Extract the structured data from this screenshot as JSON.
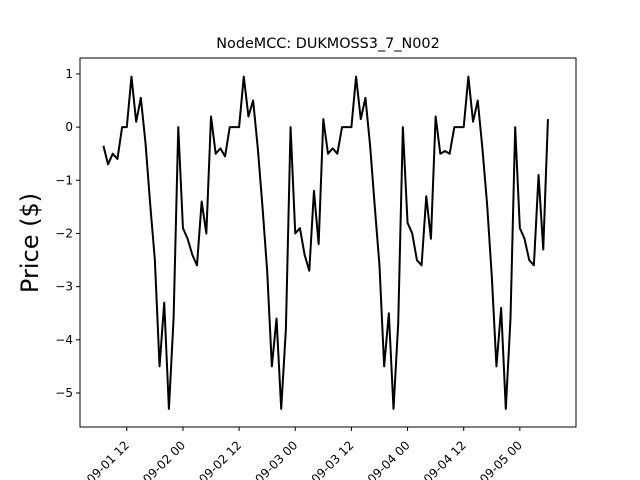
{
  "chart_data": {
    "type": "line",
    "title": "NodeMCC: DUKMOSS3_7_N002",
    "y_label": "Price ($)",
    "x": [
      "09-01 07",
      "09-01 08",
      "09-01 09",
      "09-01 10",
      "09-01 11",
      "09-01 12",
      "09-01 13",
      "09-01 14",
      "09-01 15",
      "09-01 16",
      "09-01 17",
      "09-01 18",
      "09-01 19",
      "09-01 20",
      "09-01 21",
      "09-01 22",
      "09-01 23",
      "09-02 00",
      "09-02 01",
      "09-02 02",
      "09-02 03",
      "09-02 04",
      "09-02 05",
      "09-02 06",
      "09-02 07",
      "09-02 08",
      "09-02 09",
      "09-02 10",
      "09-02 11",
      "09-02 12",
      "09-02 13",
      "09-02 14",
      "09-02 15",
      "09-02 16",
      "09-02 17",
      "09-02 18",
      "09-02 19",
      "09-02 20",
      "09-02 21",
      "09-02 22",
      "09-02 23",
      "09-03 00",
      "09-03 01",
      "09-03 02",
      "09-03 03",
      "09-03 04",
      "09-03 05",
      "09-03 06",
      "09-03 07",
      "09-03 08",
      "09-03 09",
      "09-03 10",
      "09-03 11",
      "09-03 12",
      "09-03 13",
      "09-03 14",
      "09-03 15",
      "09-03 16",
      "09-03 17",
      "09-03 18",
      "09-03 19",
      "09-03 20",
      "09-03 21",
      "09-03 22",
      "09-03 23",
      "09-04 00",
      "09-04 01",
      "09-04 02",
      "09-04 03",
      "09-04 04",
      "09-04 05",
      "09-04 06",
      "09-04 07",
      "09-04 08",
      "09-04 09",
      "09-04 10",
      "09-04 11",
      "09-04 12",
      "09-04 13",
      "09-04 14",
      "09-04 15",
      "09-04 16",
      "09-04 17",
      "09-04 18",
      "09-04 19",
      "09-04 20",
      "09-04 21",
      "09-04 22",
      "09-04 23",
      "09-05 00",
      "09-05 01",
      "09-05 02",
      "09-05 03",
      "09-05 04",
      "09-05 05",
      "09-05 06"
    ],
    "series": [
      {
        "name": "DUKMOSS3_7_N002",
        "color": "#000000",
        "values": [
          -0.35,
          -0.7,
          -0.5,
          -0.6,
          0,
          0,
          0.95,
          0.1,
          0.55,
          -0.3,
          -1.45,
          -2.5,
          -4.5,
          -3.3,
          -5.3,
          -3.6,
          0,
          -1.9,
          -2.1,
          -2.4,
          -2.6,
          -1.4,
          -2.0,
          0.2,
          -0.5,
          -0.4,
          -0.55,
          0,
          0,
          0,
          0.95,
          0.2,
          0.5,
          -0.4,
          -1.5,
          -2.7,
          -4.5,
          -3.6,
          -5.3,
          -3.8,
          0,
          -2.0,
          -1.9,
          -2.4,
          -2.7,
          -1.2,
          -2.2,
          0.15,
          -0.5,
          -0.4,
          -0.5,
          0,
          0,
          0,
          0.95,
          0.15,
          0.55,
          -0.35,
          -1.5,
          -2.6,
          -4.5,
          -3.5,
          -5.3,
          -3.7,
          0,
          -1.8,
          -2.0,
          -2.5,
          -2.6,
          -1.3,
          -2.1,
          0.2,
          -0.5,
          -0.45,
          -0.5,
          0,
          0,
          0,
          0.95,
          0.1,
          0.5,
          -0.4,
          -1.45,
          -2.8,
          -4.5,
          -3.4,
          -5.3,
          -3.6,
          0,
          -1.9,
          -2.1,
          -2.5,
          -2.6,
          -0.9,
          -2.3,
          0.15
        ]
      }
    ],
    "xlim": [
      "09-01 02",
      "09-05 12"
    ],
    "xticks": [
      "09-01 12",
      "09-02 00",
      "09-02 12",
      "09-03 00",
      "09-03 12",
      "09-04 00",
      "09-04 12",
      "09-05 00"
    ],
    "ylim": [
      -5.64,
      1.3
    ],
    "yticks": [
      1,
      0,
      {
        "value": -1,
        "label": "−1"
      },
      {
        "value": -2,
        "label": "−2"
      },
      {
        "value": -3,
        "label": "−3"
      },
      {
        "value": -4,
        "label": "−4"
      },
      {
        "value": -5,
        "label": "−5"
      }
    ]
  }
}
